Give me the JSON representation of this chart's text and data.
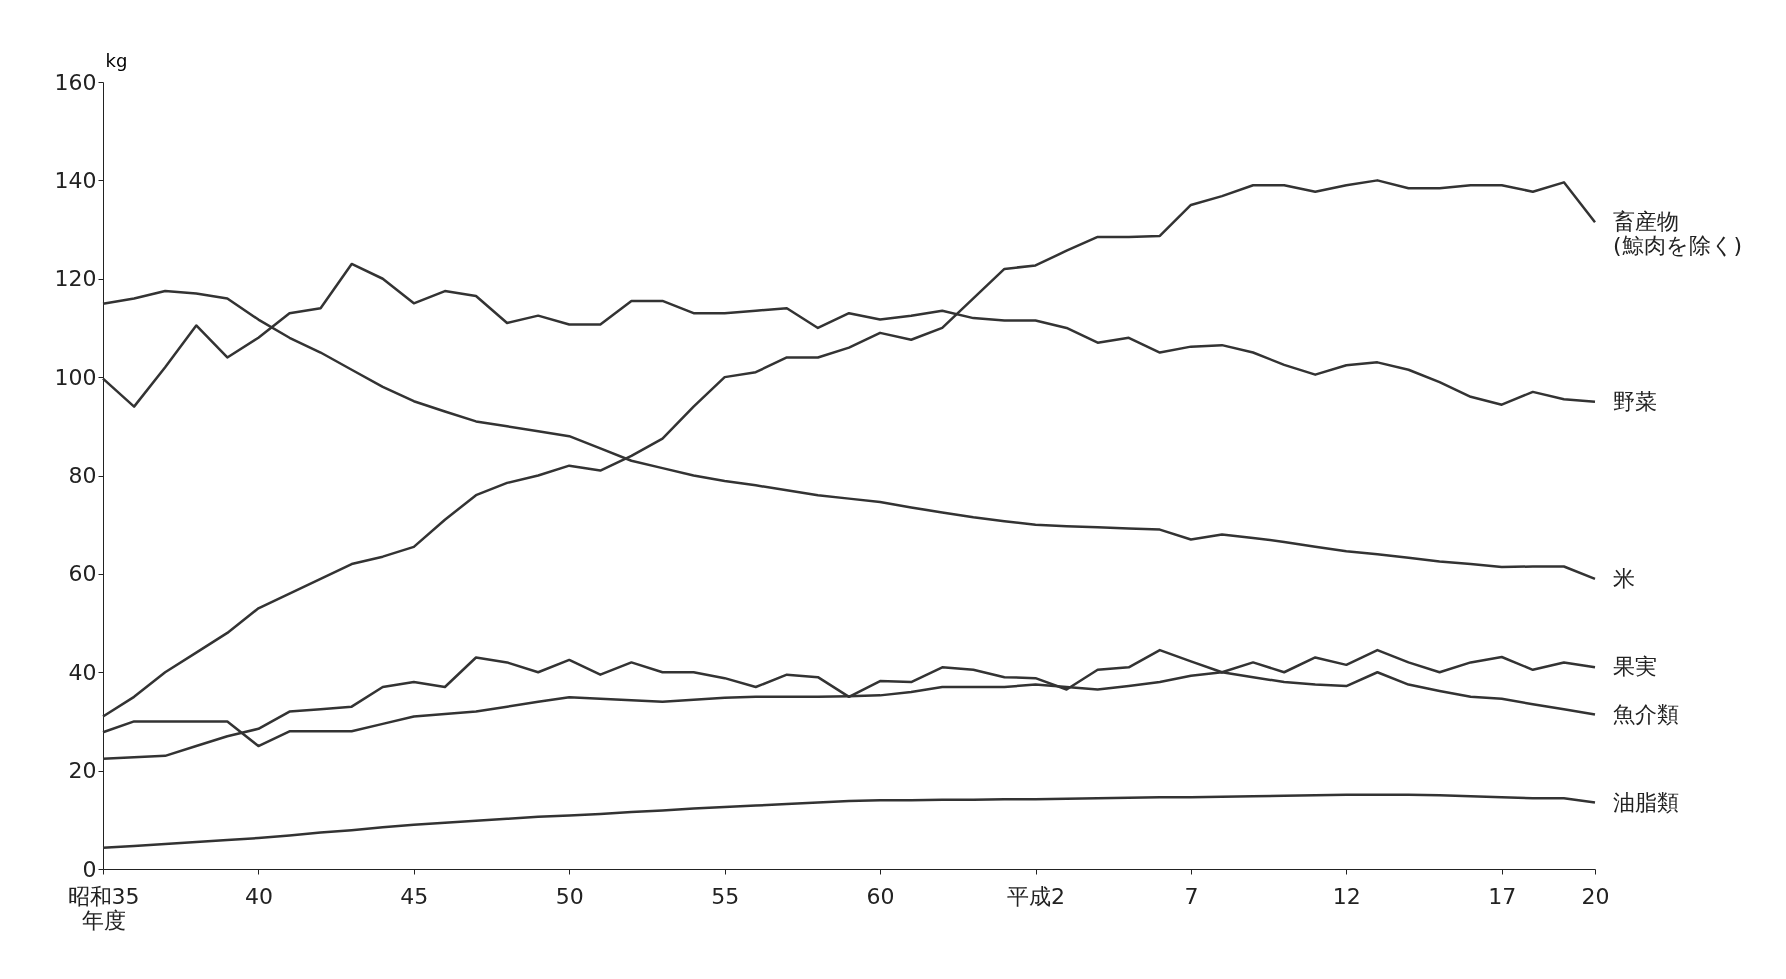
{
  "chart_data": {
    "type": "line",
    "ylabel": "kg",
    "categories": [
      "昭和35\n年度",
      null,
      null,
      null,
      null,
      "40",
      null,
      null,
      null,
      null,
      "45",
      null,
      null,
      null,
      null,
      "50",
      null,
      null,
      null,
      null,
      "55",
      null,
      null,
      null,
      null,
      "60",
      null,
      null,
      null,
      null,
      "平成2",
      null,
      null,
      null,
      null,
      "7",
      null,
      null,
      null,
      null,
      "12",
      null,
      null,
      null,
      null,
      "17",
      null,
      null,
      "20"
    ],
    "ylim": [
      0,
      160
    ],
    "yticks": [
      0,
      20,
      40,
      60,
      80,
      100,
      120,
      140,
      160
    ],
    "grid": false,
    "legend": false,
    "marker": "none",
    "line_style": "solid",
    "series": [
      {
        "name": "畜産物\n(鯨肉を除く)",
        "color": "#333333",
        "values": [
          31,
          35,
          40,
          44,
          48,
          53,
          56,
          59,
          62,
          63.5,
          65.5,
          71,
          76,
          78.5,
          80,
          82,
          81,
          84,
          87.5,
          94,
          100,
          101,
          104,
          104,
          106,
          109,
          107.6,
          110,
          116,
          122,
          122.7,
          125.7,
          128.5,
          128.5,
          128.7,
          135,
          136.8,
          139,
          139,
          137.7,
          139,
          140,
          138.4,
          138.4,
          139,
          139,
          137.7,
          139.6,
          131.5
        ]
      },
      {
        "name": "野菜",
        "color": "#333333",
        "values": [
          99.7,
          94,
          102,
          110.5,
          104,
          108,
          113,
          114,
          123,
          120,
          115,
          117.5,
          116.5,
          111,
          112.5,
          110.7,
          110.7,
          115.5,
          115.5,
          113,
          113,
          113.5,
          114,
          110,
          113,
          111.7,
          112.5,
          113.5,
          112,
          111.5,
          111.5,
          110,
          107,
          108,
          105,
          106.2,
          106.5,
          105,
          102.5,
          100.5,
          102.4,
          103,
          101.5,
          99,
          96,
          94.4,
          97,
          95.5,
          95
        ]
      },
      {
        "name": "米",
        "color": "#333333",
        "values": [
          114.9,
          116,
          117.5,
          117,
          116,
          111.7,
          108,
          105,
          101.5,
          98,
          95.1,
          93,
          91,
          90,
          89,
          88,
          85.5,
          83,
          81.5,
          80,
          78.9,
          78,
          77,
          76,
          75.3,
          74.6,
          73.5,
          72.5,
          71.5,
          70.7,
          70,
          69.7,
          69.5,
          69.2,
          69,
          67,
          68,
          67.3,
          66.5,
          65.5,
          64.6,
          64,
          63.3,
          62.5,
          62,
          61.4,
          61.5,
          61.5,
          59
        ]
      },
      {
        "name": "果実",
        "color": "#333333",
        "values": [
          22.4,
          22.7,
          23,
          25,
          27,
          28.5,
          32,
          32.5,
          33,
          37,
          38,
          37,
          43,
          42,
          40,
          42.5,
          39.5,
          42,
          40,
          40,
          38.8,
          37,
          39.5,
          39,
          35,
          38.2,
          38,
          41,
          40.5,
          39,
          38.8,
          36.5,
          40.5,
          41,
          44.5,
          42.2,
          40,
          42,
          40,
          43,
          41.5,
          44.5,
          42,
          40,
          42,
          43.1,
          40.5,
          42,
          41
        ]
      },
      {
        "name": "魚介類",
        "color": "#333333",
        "values": [
          27.8,
          30,
          30,
          30,
          30,
          25,
          28,
          28,
          28,
          29.5,
          31,
          31.5,
          32,
          33,
          34,
          34.9,
          34.6,
          34.3,
          34,
          34.4,
          34.8,
          35,
          35,
          35,
          35.1,
          35.3,
          36,
          37,
          37,
          37,
          37.5,
          37,
          36.5,
          37.2,
          38,
          39.3,
          40,
          39,
          38,
          37.5,
          37.2,
          40,
          37.5,
          36.2,
          35,
          34.6,
          33.5,
          32.5,
          31.4
        ]
      },
      {
        "name": "油脂類",
        "color": "#333333",
        "values": [
          4.3,
          4.7,
          5.1,
          5.5,
          5.9,
          6.3,
          6.8,
          7.4,
          7.9,
          8.5,
          9,
          9.4,
          9.8,
          10.2,
          10.6,
          10.9,
          11.2,
          11.6,
          11.9,
          12.3,
          12.6,
          12.9,
          13.2,
          13.5,
          13.8,
          14,
          14,
          14.1,
          14.1,
          14.2,
          14.2,
          14.3,
          14.4,
          14.5,
          14.6,
          14.6,
          14.7,
          14.8,
          14.9,
          15,
          15.1,
          15.1,
          15.1,
          15,
          14.8,
          14.6,
          14.4,
          14.4,
          13.5
        ]
      }
    ]
  }
}
